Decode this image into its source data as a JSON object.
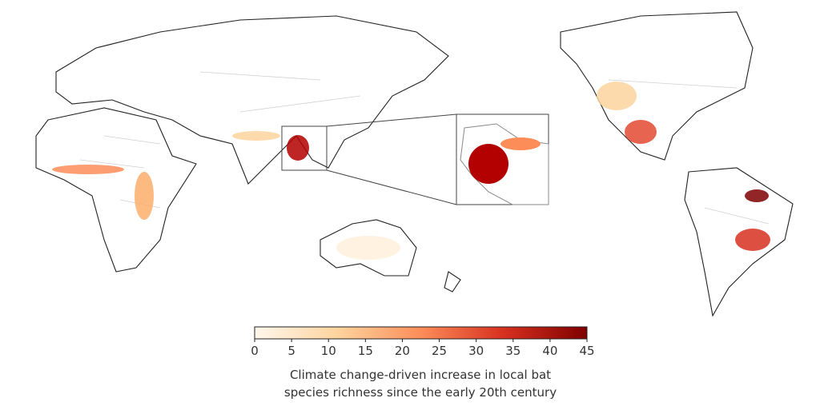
{
  "colorbar": {
    "range": [
      0,
      45
    ],
    "ticks": [
      0,
      5,
      10,
      15,
      20,
      25,
      30,
      35,
      40,
      45
    ],
    "colormap": [
      "#fff7ec",
      "#fdd49e",
      "#fc8d59",
      "#d7301f",
      "#7f0000"
    ],
    "label_lines": [
      "Climate change-driven increase in local bat",
      "species richness since the early 20th century"
    ]
  }
}
